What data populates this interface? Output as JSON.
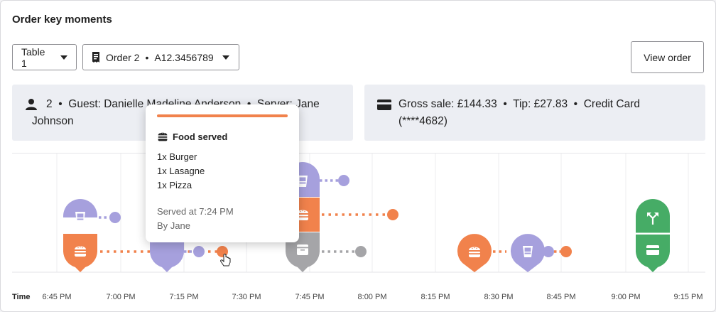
{
  "card": {
    "title": "Order key moments"
  },
  "controls": {
    "table_select": "Table 1",
    "order_select": {
      "order": "Order 2",
      "separator": "•",
      "order_id": "A12.3456789"
    },
    "view_order_label": "View order"
  },
  "guest_info": {
    "line1": "2  •  Guest: Danielle Madeline Anderson  •  Server: Jane",
    "line2": "Johnson"
  },
  "payment_info": {
    "line1": "Gross sale: £144.33  •  Tip: £27.83  •  Credit Card",
    "line2": "(****4682)"
  },
  "tooltip": {
    "title": "Food served",
    "items": [
      "1x Burger",
      "1x Lasagne",
      "1x Pizza"
    ],
    "served_at": "Served at 7:24 PM",
    "served_by": "By Jane"
  },
  "colors": {
    "drink": "#a6a0dd",
    "food": "#f1824c",
    "clear": "#a5a5a8",
    "pay": "#46ac66",
    "info_bg": "#eceef3"
  },
  "icons": {
    "guest": "person-icon",
    "payment": "credit-card-icon",
    "drink": "glass-icon",
    "food": "burger-icon",
    "clear": "clear-icon",
    "transfer": "transfer-icon"
  },
  "timeline": {
    "axis_label": "Time",
    "ticks": [
      "6:45 PM",
      "7:00 PM",
      "7:15 PM",
      "7:30 PM",
      "7:45 PM",
      "8:00 PM",
      "8:15 PM",
      "8:30 PM",
      "8:45 PM",
      "9:00 PM",
      "9:15 PM"
    ]
  }
}
